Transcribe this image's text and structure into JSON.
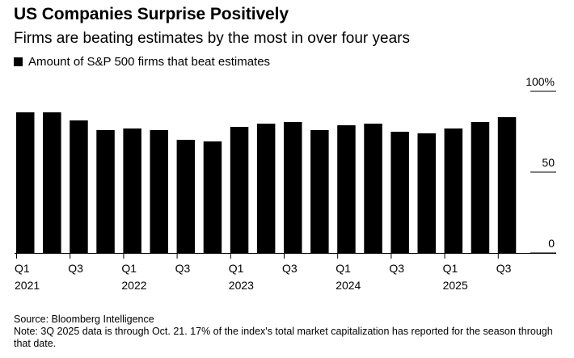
{
  "chart_data": {
    "type": "bar",
    "title": "US Companies Surprise Positively",
    "subtitle": "Firms are beating estimates by the most in over four years",
    "legend": [
      {
        "name": "Amount of S&P 500 firms that beat estimates",
        "color": "#000000"
      }
    ],
    "categories": [
      "Q1 2021",
      "Q2 2021",
      "Q3 2021",
      "Q4 2021",
      "Q1 2022",
      "Q2 2022",
      "Q3 2022",
      "Q4 2022",
      "Q1 2023",
      "Q2 2023",
      "Q3 2023",
      "Q4 2023",
      "Q1 2024",
      "Q2 2024",
      "Q3 2024",
      "Q4 2024",
      "Q1 2025",
      "Q2 2025",
      "Q3 2025"
    ],
    "values": [
      87,
      87,
      82,
      76,
      77,
      76,
      70,
      69,
      78,
      80,
      81,
      76,
      79,
      80,
      75,
      74,
      77,
      81,
      84
    ],
    "ylim": [
      0,
      100
    ],
    "y_ticks": [
      "100%",
      "50",
      "0"
    ],
    "y_tick_values": [
      100,
      50,
      0
    ],
    "x_tick_labels": [
      {
        "index": 0,
        "quarter": "Q1",
        "year": "2021"
      },
      {
        "index": 2,
        "quarter": "Q3",
        "year": ""
      },
      {
        "index": 4,
        "quarter": "Q1",
        "year": "2022"
      },
      {
        "index": 6,
        "quarter": "Q3",
        "year": ""
      },
      {
        "index": 8,
        "quarter": "Q1",
        "year": "2023"
      },
      {
        "index": 10,
        "quarter": "Q3",
        "year": ""
      },
      {
        "index": 12,
        "quarter": "Q1",
        "year": "2024"
      },
      {
        "index": 14,
        "quarter": "Q3",
        "year": ""
      },
      {
        "index": 16,
        "quarter": "Q1",
        "year": "2025"
      },
      {
        "index": 18,
        "quarter": "Q3",
        "year": ""
      }
    ],
    "bar_color": "#000000",
    "ylabel": "",
    "xlabel": ""
  },
  "footer": {
    "source": "Source: Bloomberg Intelligence",
    "note": "Note: 3Q 2025 data is through Oct. 21. 17% of the index's total market capitalization has reported for the season through that date."
  }
}
